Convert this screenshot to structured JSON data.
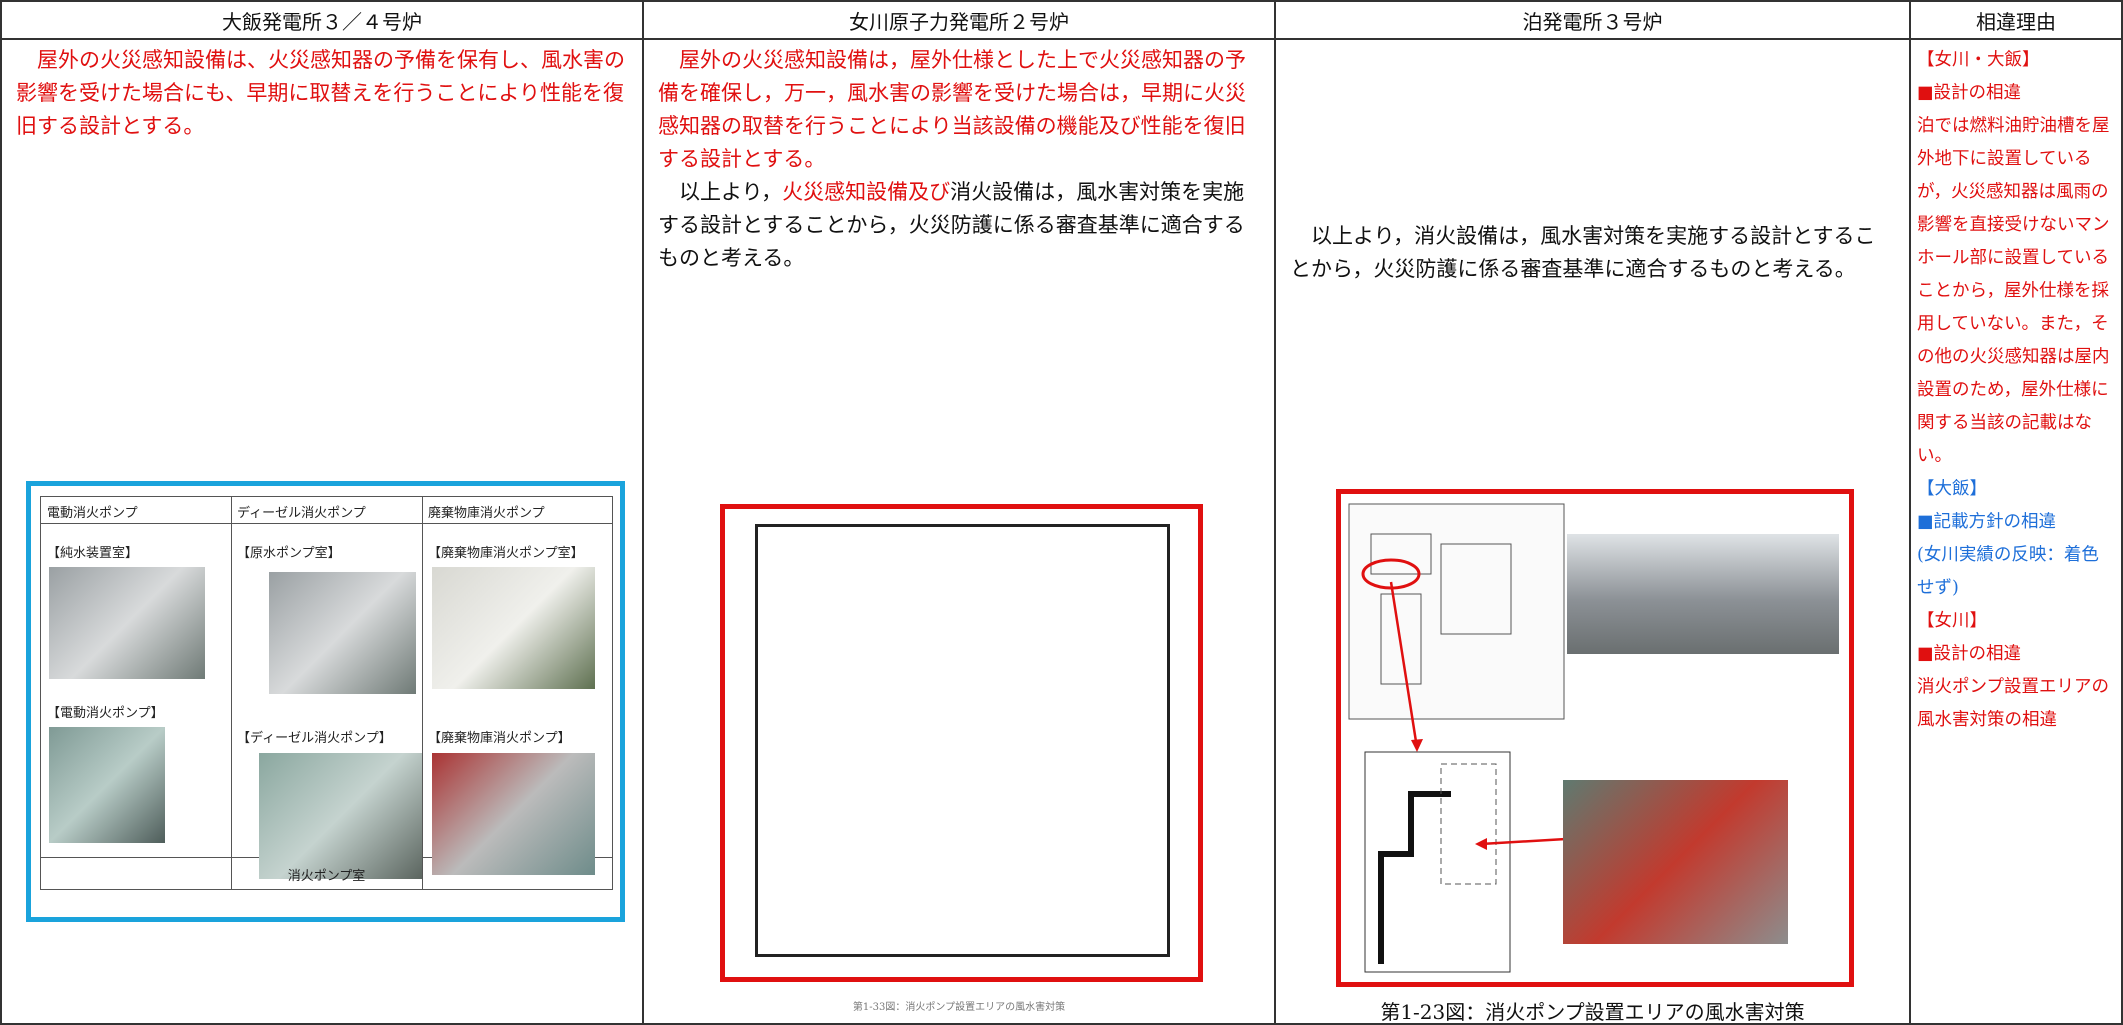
{
  "header": [
    "大飯発電所３／４号炉",
    "女川原子力発電所２号炉",
    "泊発電所３号炉",
    "相違理由"
  ],
  "columns": [
    {
      "paragraphs": [
        [
          {
            "text": "屋外の火災感知設備は、火災感知器の予備を保有し、風水害の影響を受けた場合にも、早期に取替えを行うことにより性能を復旧する設計とする。",
            "color": "#e01010"
          }
        ]
      ],
      "figure": {
        "headers": [
          "電動消火ポンプ",
          "ディーゼル消火ポンプ",
          "廃棄物庫消火ポンプ"
        ],
        "photo_labels": [
          "【純水装置室】",
          "【電動消火ポンプ】",
          "【原水ポンプ室】",
          "【ディーゼル消火ポンプ】",
          "【廃棄物庫消火ポンプ室】",
          "【廃棄物庫消火ポンプ】"
        ],
        "caption": "消火ポンプ室"
      }
    },
    {
      "paragraphs": [
        [
          {
            "text": "屋外の火災感知設備は，屋外仕様とした上で火災感知器の予備を確保し，万一，風水害の影響を受けた場合は，早期に火災感知器の取替を行うことにより当該設備の機能及び性能を復旧する設計とする。",
            "color": "#e01010"
          }
        ],
        [
          {
            "text": "以上より，",
            "color": "#111111"
          },
          {
            "text": "火災感知設備及び",
            "color": "#e01010"
          },
          {
            "text": "消火設備は，風水害対策を実施する設計とすることから，火災防護に係る審査基準に適合するものと考える。",
            "color": "#111111"
          }
        ]
      ],
      "figure": {
        "caption": "第1-33図：消火ポンプ設置エリアの風水害対策"
      }
    },
    {
      "paragraphs": [
        [
          {
            "text": "以上より，消火設備は，風水害対策を実施する設計とすることから，火災防護に係る審査基準に適合するものと考える。",
            "color": "#111111"
          }
        ]
      ],
      "figure": {
        "caption": "第1-23図：消火ポンプ設置エリアの風水害対策"
      }
    },
    {
      "lines": [
        {
          "text": "【女川・大飯】",
          "color": "#e01010"
        },
        {
          "text": "■設計の相違",
          "color": "#e01010"
        },
        {
          "text": "泊では燃料油貯油槽を屋外地下に設置しているが，火災感知器は風雨の影響を直接受けないマンホール部に設置していることから，屋外仕様を採用していない。また，その他の火災感知器は屋内設置のため，屋外仕様に関する当該の記載はない。",
          "color": "#e01010"
        },
        {
          "text": "【大飯】",
          "color": "#1e6fd9"
        },
        {
          "text": "■記載方針の相違",
          "color": "#1e6fd9"
        },
        {
          "text": "(女川実績の反映：着色せず)",
          "color": "#1e6fd9"
        },
        {
          "text": "【女川】",
          "color": "#e01010"
        },
        {
          "text": "■設計の相違",
          "color": "#e01010"
        },
        {
          "text": "消火ポンプ設置エリアの風水害対策の相違",
          "color": "#e01010"
        }
      ]
    }
  ]
}
